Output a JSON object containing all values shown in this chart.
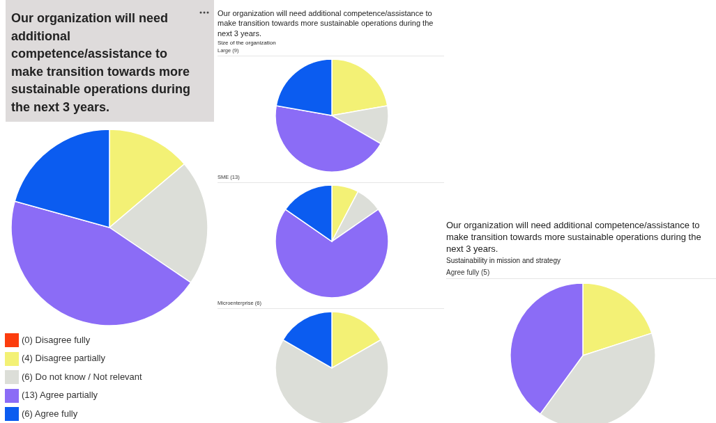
{
  "chart_data": [
    {
      "type": "pie",
      "title": "Our organization will need additional competence/assistance to make transition towards more sustainable operations during the next 3 years.",
      "categories": [
        "(0) Disagree fully",
        "(4) Disagree partially",
        "(6) Do not know / Not relevant",
        "(13) Agree partially",
        "(6) Agree fully"
      ],
      "values": [
        0,
        4,
        6,
        13,
        6
      ],
      "colors": [
        "#fc3d0e",
        "#f3f175",
        "#dcded8",
        "#8b6cf6",
        "#0b5cf0"
      ],
      "legend": "bottom"
    },
    {
      "type": "other",
      "title": "Our organization will need additional competence/assistance to make transition towards more sustainable operations during the next 3 years.",
      "subtitle": "Size of the organization"
    },
    {
      "type": "pie",
      "title": "Large (9)",
      "categories": [
        null,
        null,
        null,
        null
      ],
      "values": [
        22.22,
        11.11,
        44.44,
        22.22
      ],
      "colors": [
        "#f3f175",
        "#dcded8",
        "#8b6cf6",
        "#0b5cf0"
      ]
    },
    {
      "type": "pie",
      "title": "SME (13)",
      "categories": [
        null,
        null,
        null,
        null
      ],
      "values": [
        7.69,
        7.69,
        69.23,
        15.38
      ],
      "colors": [
        "#f3f175",
        "#dcded8",
        "#8b6cf6",
        "#0b5cf0"
      ]
    },
    {
      "type": "pie",
      "title": "Microenterprise (6)",
      "categories": [
        null,
        null,
        null
      ],
      "values": [
        16.67,
        66.67,
        16.67
      ],
      "colors": [
        "#f3f175",
        "#dcded8",
        "#0b5cf0"
      ]
    },
    {
      "type": "other",
      "title": "Our organization will need additional competence/assistance to make transition towards more sustainable operations during the next 3 years.",
      "subtitle": "Sustainability in mission and strategy"
    },
    {
      "type": "pie",
      "title": "Agree fully (5)",
      "categories": [
        null,
        null,
        null
      ],
      "values": [
        20,
        40,
        40
      ],
      "colors": [
        "#f3f175",
        "#dcded8",
        "#8b6cf6"
      ]
    }
  ]
}
